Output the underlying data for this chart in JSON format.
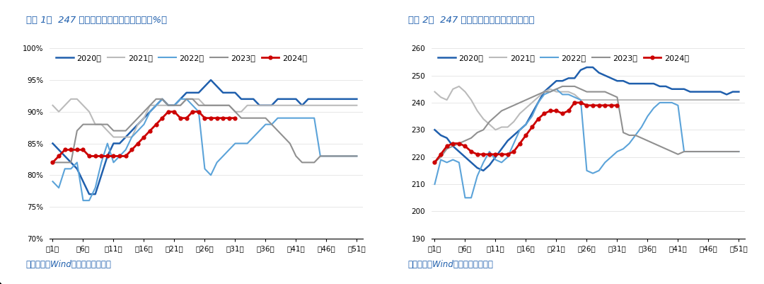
{
  "title1": "图表 1：  247 家样本锤厂练鐵产能利用率（%）",
  "title2": "图表 2：  247 家锤厂日均鐵水产量（万吨）",
  "source_text": "资料来源：Wind，国盛证券研究所",
  "x_labels": [
    "第1周",
    "第6周",
    "第11周",
    "第16周",
    "第21周",
    "第26周",
    "第31周",
    "第36周",
    "第41周",
    "第46周",
    "第51周"
  ],
  "x_ticks": [
    0,
    5,
    10,
    15,
    20,
    25,
    30,
    35,
    40,
    45,
    50
  ],
  "legend_labels": [
    "2020年",
    "2021年",
    "2022年",
    "2023年",
    "2024年"
  ],
  "colors": {
    "2020": "#1F5FAD",
    "2021": "#BBBBBB",
    "2022": "#5BA3D9",
    "2023": "#909090",
    "2024": "#CC0000"
  },
  "chart1": {
    "ylim": [
      70,
      100
    ],
    "yticks": [
      70,
      75,
      80,
      85,
      90,
      95,
      100
    ],
    "ytick_labels": [
      "70%",
      "75%",
      "80%",
      "85%",
      "90%",
      "95%",
      "100%"
    ],
    "y2020": [
      85,
      84,
      83,
      82,
      81,
      79,
      77,
      77,
      80,
      83,
      85,
      85,
      86,
      87,
      88,
      89,
      90,
      91,
      92,
      91,
      91,
      92,
      93,
      93,
      93,
      94,
      95,
      94,
      93,
      93,
      93,
      92,
      92,
      92,
      91,
      91,
      91,
      92,
      92,
      92,
      92,
      91,
      92,
      92,
      92,
      92,
      92,
      92,
      92,
      92,
      92
    ],
    "y2021": [
      91,
      90,
      91,
      92,
      92,
      91,
      90,
      88,
      88,
      87,
      86,
      86,
      86,
      86,
      88,
      89,
      91,
      91,
      91,
      91,
      91,
      91,
      92,
      92,
      92,
      91,
      91,
      91,
      91,
      91,
      90,
      90,
      91,
      91,
      91,
      91,
      91,
      91,
      91,
      91,
      91,
      91,
      91,
      91,
      91,
      91,
      91,
      91,
      91,
      91,
      91
    ],
    "y2022": [
      79,
      78,
      81,
      81,
      82,
      76,
      76,
      78,
      82,
      85,
      82,
      83,
      84,
      86,
      87,
      88,
      90,
      91,
      92,
      91,
      91,
      92,
      92,
      91,
      90,
      81,
      80,
      82,
      83,
      84,
      85,
      85,
      85,
      86,
      87,
      88,
      88,
      89,
      89,
      89,
      89,
      89,
      89,
      89,
      83,
      83,
      83,
      83,
      83,
      83,
      83
    ],
    "y2023": [
      82,
      82,
      82,
      82,
      87,
      88,
      88,
      88,
      88,
      88,
      87,
      87,
      87,
      88,
      89,
      90,
      91,
      92,
      92,
      91,
      91,
      91,
      92,
      92,
      91,
      91,
      91,
      91,
      91,
      91,
      90,
      89,
      89,
      89,
      89,
      89,
      88,
      87,
      86,
      85,
      83,
      82,
      82,
      82,
      83,
      83,
      83,
      83,
      83,
      83,
      83
    ],
    "y2024": [
      82,
      83,
      84,
      84,
      84,
      84,
      83,
      83,
      83,
      83,
      83,
      83,
      83,
      84,
      85,
      86,
      87,
      88,
      89,
      90,
      90,
      89,
      89,
      90,
      90,
      89,
      89,
      89,
      89,
      89,
      89,
      null,
      null,
      null,
      null,
      null,
      null,
      null,
      null,
      null,
      null,
      null,
      null,
      null,
      null,
      null,
      null,
      null,
      null,
      null,
      null
    ]
  },
  "chart2": {
    "ylim": [
      190,
      260
    ],
    "yticks": [
      190,
      200,
      210,
      220,
      230,
      240,
      250,
      260
    ],
    "ytick_labels": [
      "190",
      "200",
      "210",
      "220",
      "230",
      "240",
      "250",
      "260"
    ],
    "y2020": [
      230,
      228,
      227,
      224,
      222,
      220,
      218,
      216,
      215,
      217,
      220,
      223,
      226,
      228,
      230,
      232,
      236,
      240,
      244,
      246,
      248,
      248,
      249,
      249,
      252,
      253,
      253,
      251,
      250,
      249,
      248,
      248,
      247,
      247,
      247,
      247,
      247,
      246,
      246,
      245,
      245,
      245,
      244,
      244,
      244,
      244,
      244,
      244,
      243,
      244,
      244
    ],
    "y2021": [
      244,
      242,
      241,
      245,
      246,
      244,
      241,
      237,
      234,
      232,
      230,
      231,
      231,
      233,
      236,
      238,
      240,
      242,
      244,
      245,
      244,
      244,
      244,
      243,
      241,
      241,
      241,
      241,
      241,
      241,
      241,
      241,
      241,
      241,
      241,
      241,
      241,
      241,
      241,
      241,
      241,
      241,
      241,
      241,
      241,
      241,
      241,
      241,
      241,
      241,
      241
    ],
    "y2022": [
      210,
      219,
      218,
      219,
      218,
      205,
      205,
      213,
      218,
      222,
      219,
      218,
      220,
      225,
      230,
      232,
      235,
      240,
      243,
      244,
      245,
      243,
      243,
      242,
      241,
      215,
      214,
      215,
      218,
      220,
      222,
      223,
      225,
      228,
      231,
      235,
      238,
      240,
      240,
      240,
      239,
      222,
      222,
      222,
      222,
      222,
      222,
      222,
      222,
      222,
      222
    ],
    "y2023": [
      218,
      220,
      223,
      224,
      225,
      226,
      227,
      229,
      230,
      233,
      235,
      237,
      238,
      239,
      240,
      241,
      242,
      243,
      244,
      244,
      245,
      246,
      246,
      246,
      245,
      244,
      244,
      244,
      244,
      243,
      242,
      229,
      228,
      228,
      227,
      226,
      225,
      224,
      223,
      222,
      221,
      222,
      222,
      222,
      222,
      222,
      222,
      222,
      222,
      222,
      222
    ],
    "y2024": [
      218,
      221,
      224,
      225,
      225,
      224,
      222,
      221,
      221,
      221,
      221,
      221,
      221,
      222,
      225,
      228,
      231,
      234,
      236,
      237,
      237,
      236,
      237,
      240,
      240,
      239,
      239,
      239,
      239,
      239,
      239,
      null,
      null,
      null,
      null,
      null,
      null,
      null,
      null,
      null,
      null,
      null,
      null,
      null,
      null,
      null,
      null,
      null,
      null,
      null,
      null
    ]
  }
}
